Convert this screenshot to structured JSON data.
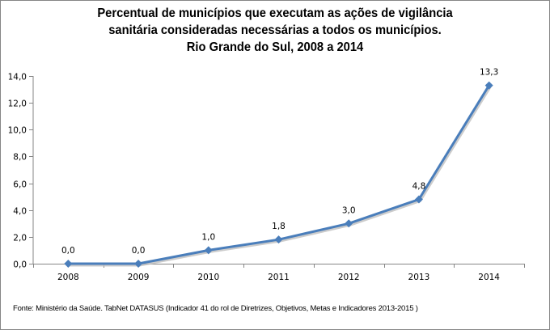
{
  "chart_data": {
    "type": "line",
    "title": [
      "Percentual de municípios que executam as ações de vigilância",
      "sanitária consideradas necessárias a todos os municípios.",
      "Rio Grande do Sul, 2008 a 2014"
    ],
    "categories": [
      "2008",
      "2009",
      "2010",
      "2011",
      "2012",
      "2013",
      "2014"
    ],
    "series": [
      {
        "name": "Percentual",
        "values": [
          0.0,
          0.0,
          1.0,
          1.8,
          3.0,
          4.8,
          13.3
        ],
        "labels": [
          "0,0",
          "0,0",
          "1,0",
          "1,8",
          "3,0",
          "4,8",
          "13,3"
        ],
        "color": "#4a7ebb"
      }
    ],
    "yticks": [
      "0,0",
      "2,0",
      "4,0",
      "6,0",
      "8,0",
      "10,0",
      "12,0",
      "14,0"
    ],
    "ylim": [
      0,
      14
    ],
    "xlabel": "",
    "ylabel": "",
    "grid": false,
    "legend": "none",
    "source": "Fonte: Ministério da Saúde. TabNet DATASUS (Indicador 41 do rol de Diretrizes, Objetivos, Metas e Indicadores 2013-2015 )"
  }
}
